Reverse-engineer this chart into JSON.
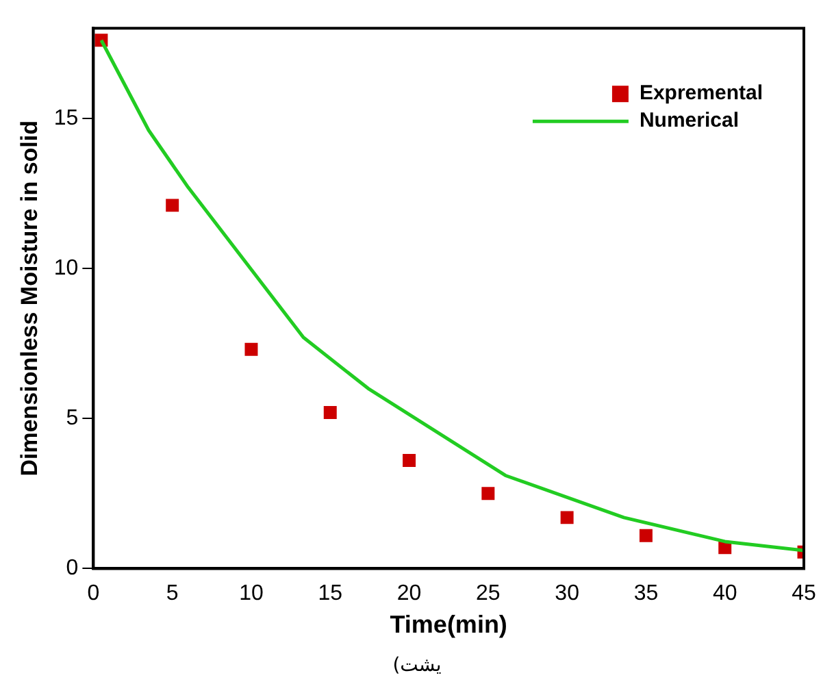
{
  "chart_data": {
    "type": "scatter",
    "xlabel": "Time(min)",
    "ylabel": "Dimensionless Moisture in solid",
    "annotations": [
      "یشت)"
    ],
    "xlim": [
      0,
      45
    ],
    "xticks": [
      0,
      5,
      10,
      15,
      20,
      25,
      30,
      35,
      40,
      45
    ],
    "ylim": [
      0,
      18
    ],
    "yticks": [
      0,
      5,
      10,
      15
    ],
    "grid": false,
    "legend": "top right",
    "series": [
      {
        "name": "Expremental",
        "type": "scatter",
        "marker": "square",
        "color": "#cc0000",
        "x": [
          0.5,
          5,
          10,
          15,
          20,
          25,
          30,
          35,
          40,
          45
        ],
        "values": [
          17.6,
          12.1,
          7.3,
          5.2,
          3.6,
          2.5,
          1.7,
          1.1,
          0.7,
          0.55
        ]
      },
      {
        "name": "Numerical",
        "type": "line",
        "marker": "none",
        "line_style": "solid",
        "color": "#22cc22",
        "x": [
          0.5,
          3.5,
          6,
          13.3,
          17.4,
          26.1,
          33.6,
          40,
          45
        ],
        "values": [
          17.6,
          14.6,
          12.7,
          7.7,
          6.0,
          3.1,
          1.7,
          0.9,
          0.6
        ]
      }
    ]
  }
}
